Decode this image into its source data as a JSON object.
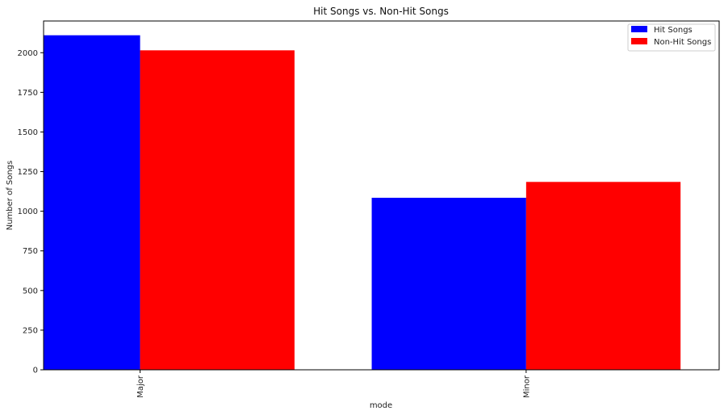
{
  "chart_data": {
    "type": "bar",
    "title": "Hit Songs vs. Non-Hit Songs",
    "xlabel": "mode",
    "ylabel": "Number of Songs",
    "categories": [
      "Major",
      "Minor"
    ],
    "series": [
      {
        "name": "Hit Songs",
        "color": "#0000ff",
        "values": [
          2110,
          1085
        ]
      },
      {
        "name": "Non-Hit Songs",
        "color": "#ff0000",
        "values": [
          2015,
          1185
        ]
      }
    ],
    "ylim": [
      0,
      2200
    ],
    "yticks": [
      0,
      250,
      500,
      750,
      1000,
      1250,
      1500,
      1750,
      2000
    ],
    "ytick_labels": [
      "0",
      "250",
      "500",
      "750",
      "1000",
      "1250",
      "1500",
      "1750",
      "2000"
    ],
    "grid": false,
    "legend_position": "top-right"
  }
}
